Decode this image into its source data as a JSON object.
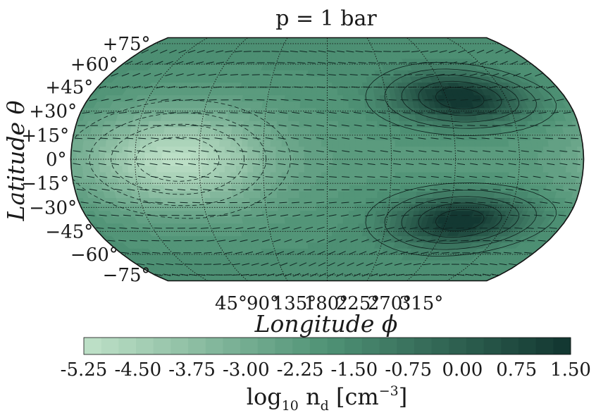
{
  "chart_data": {
    "type": "heatmap",
    "projection": "robinson",
    "title": "p = 1 bar",
    "xlabel": "Longitude ϕ",
    "ylabel": "Latitude θ",
    "x_ticks": [
      "45°",
      "90°",
      "135°",
      "180°",
      "225°",
      "270°",
      "315°"
    ],
    "x_tick_values": [
      45,
      90,
      135,
      180,
      225,
      270,
      315
    ],
    "y_ticks": [
      "+75°",
      "+60°",
      "+45°",
      "+30°",
      "+15°",
      "0°",
      "−15°",
      "−30°",
      "−45°",
      "−60°",
      "−75°"
    ],
    "y_tick_values": [
      75,
      60,
      45,
      30,
      15,
      0,
      -15,
      -30,
      -45,
      -60,
      -75
    ],
    "lat_range": [
      -80,
      80
    ],
    "lon_range": [
      0,
      360
    ],
    "colorbar": {
      "label_base": "log",
      "label_sub": "10",
      "label_mid": " n",
      "label_sub2": "d",
      "label_unit": " [cm",
      "label_exp": "−3",
      "label_end": "]",
      "ticks": [
        "-5.25",
        "-4.50",
        "-3.75",
        "-3.00",
        "-2.25",
        "-1.50",
        "-0.75",
        "0.00",
        "0.75",
        "1.50"
      ],
      "tick_values": [
        -5.25,
        -4.5,
        -3.75,
        -3.0,
        -2.25,
        -1.5,
        -0.75,
        0.0,
        0.75,
        1.5
      ],
      "min": -5.25,
      "max": 1.5,
      "levels": 28,
      "color_low": "#c0e2c9",
      "color_mid": "#4f9275",
      "color_high": "#113530"
    },
    "field_features": {
      "minimum_center": {
        "lon": 75,
        "lat": 0,
        "value": -5.0
      },
      "maxima_centers": [
        {
          "lon": 280,
          "lat": 38,
          "value": 1.45
        },
        {
          "lon": 280,
          "lat": -38,
          "value": 1.45
        }
      ]
    },
    "overlays": [
      "filled contours",
      "contour lines",
      "wind vectors",
      "dotted graticule"
    ],
    "out_of_range_color": "#e6e9ef"
  }
}
